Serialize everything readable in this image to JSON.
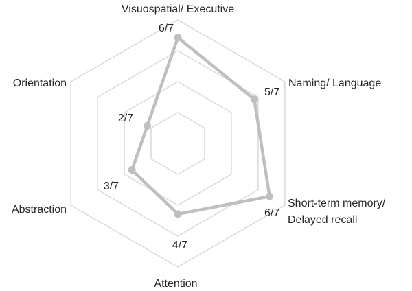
{
  "chart_data": {
    "type": "radar",
    "max": 7,
    "levels": 4,
    "grid": true,
    "colors": {
      "grid": "#d9d9d9",
      "series": "#bfbfbf",
      "text": "#262626"
    },
    "axes": [
      {
        "key": "visuospatial",
        "label_lines": [
          "Visuospatial/ Executive"
        ],
        "value": 6,
        "value_label": "6/7"
      },
      {
        "key": "naming",
        "label_lines": [
          "Naming/ Language"
        ],
        "value": 5,
        "value_label": "5/7"
      },
      {
        "key": "memory",
        "label_lines": [
          "Short-term memory/",
          "Delayed recall"
        ],
        "value": 6,
        "value_label": "6/7"
      },
      {
        "key": "attention",
        "label_lines": [
          "Attention"
        ],
        "value": 4,
        "value_label": "4/7"
      },
      {
        "key": "abstraction",
        "label_lines": [
          "Abstraction"
        ],
        "value": 3,
        "value_label": "3/7"
      },
      {
        "key": "orientation",
        "label_lines": [
          "Orientation"
        ],
        "value": 2,
        "value_label": "2/7"
      }
    ]
  }
}
